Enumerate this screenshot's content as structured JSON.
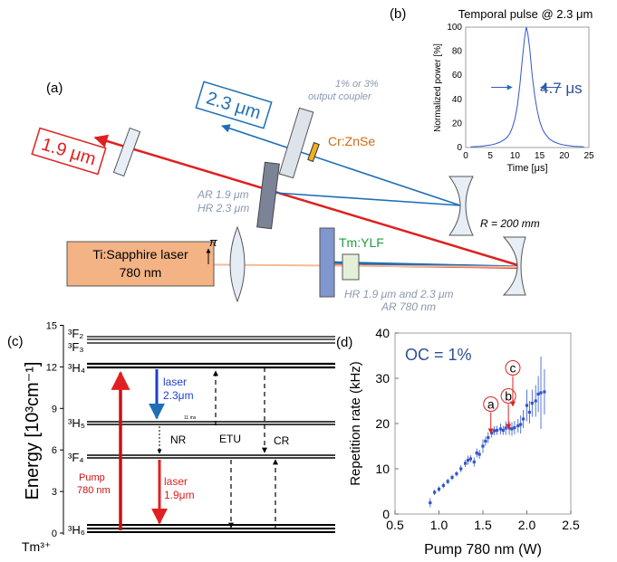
{
  "panels": {
    "a": "(a)",
    "b": "(b)",
    "c": "(c)",
    "d": "(d)"
  },
  "setup": {
    "laser_line1": "Ti:Sapphire laser",
    "laser_line2": "780 nm",
    "pi": "π",
    "out_19": "1.9 μm",
    "out_23": "2.3 μm",
    "coupler1": "1% or 3%",
    "coupler2": "output coupler",
    "crystal_cr": "Cr:ZnSe",
    "dichroic1": "AR 1.9 μm",
    "dichroic2": "HR 2.3 μm",
    "mirror_r": "R = 200 mm",
    "crystal_tm": "Tm:YLF",
    "hr1": "HR 1.9 μm and 2.3 μm",
    "hr2": "AR 780 nm"
  },
  "levels": {
    "ylabel": "Energy [10³cm⁻¹]",
    "ion": "Tm³⁺",
    "level_3F2": "³F₂",
    "level_3F3": "³F₃",
    "level_3H4": "³H₄",
    "level_3H5": "³H₅",
    "level_3F4": "³F₄",
    "level_3H6": "³H₆",
    "ticks": [
      "0",
      "3",
      "6",
      "9",
      "12",
      "15"
    ],
    "pump1": "Pump",
    "pump2": "780 nm",
    "laser23_1": "laser",
    "laser23_2": "2.3μm",
    "laser19_1": "laser",
    "laser19_2": "1.9μm",
    "nr": "NR",
    "etu": "ETU",
    "cr": "CR",
    "tiny": "11 ms"
  },
  "chart_data": [
    {
      "type": "line",
      "title": "Temporal pulse @ 2.3 μm",
      "xlabel": "Time [μs]",
      "ylabel": "Normalized power [%]",
      "xlim": [
        0,
        25
      ],
      "ylim": [
        0,
        100
      ],
      "xticks": [
        "0",
        "5",
        "10",
        "15",
        "20",
        "25"
      ],
      "yticks": [
        "0",
        "20",
        "40",
        "60",
        "80",
        "100"
      ],
      "peak_time": 12.3,
      "fwhm_label": "4.7 μs",
      "series": [
        {
          "x": [
            1,
            3,
            5,
            6,
            7,
            8,
            8.5,
            9,
            9.5,
            10,
            10.5,
            11,
            11.5,
            12,
            12.3,
            12.6,
            13,
            13.5,
            14,
            14.5,
            15,
            15.5,
            16,
            17,
            18,
            19,
            20,
            22,
            24
          ],
          "y": [
            0.5,
            1,
            2,
            3,
            4.5,
            7,
            9,
            12,
            17,
            24,
            35,
            52,
            74,
            93,
            100,
            95,
            82,
            60,
            43,
            31,
            22,
            16,
            12,
            7,
            4.5,
            3,
            2,
            1,
            0.5
          ]
        }
      ],
      "color": "#3355cc"
    },
    {
      "type": "scatter",
      "xlabel": "Pump 780 nm (W)",
      "ylabel": "Repetition rate (kHz)",
      "xlim": [
        0.5,
        2.5
      ],
      "ylim": [
        0,
        40
      ],
      "xticks": [
        "0.5",
        "1.0",
        "1.5",
        "2.0",
        "2.5"
      ],
      "yticks": [
        "0",
        "10",
        "20",
        "30",
        "40"
      ],
      "annotation": "OC = 1%",
      "markers": [
        {
          "label": "a",
          "x": 1.59,
          "y": 17.5
        },
        {
          "label": "b",
          "x": 1.79,
          "y": 18.5
        },
        {
          "label": "c",
          "x": 1.84,
          "y": 23.5
        }
      ],
      "series": [
        {
          "x": [
            0.9,
            0.95,
            1.0,
            1.05,
            1.1,
            1.15,
            1.2,
            1.25,
            1.3,
            1.33,
            1.36,
            1.4,
            1.43,
            1.46,
            1.5,
            1.53,
            1.56,
            1.6,
            1.63,
            1.66,
            1.7,
            1.73,
            1.76,
            1.8,
            1.83,
            1.86,
            1.9,
            1.93,
            1.96,
            2.0,
            2.03,
            2.06,
            2.1,
            2.13,
            2.16,
            2.2
          ],
          "y": [
            2.5,
            4.8,
            5.5,
            6.3,
            7.2,
            8.1,
            8.9,
            10.0,
            11.2,
            11.9,
            12.2,
            11.5,
            13.5,
            13.2,
            15.0,
            16.1,
            16.9,
            17.9,
            18.4,
            18.5,
            18.8,
            18.5,
            19.0,
            19.0,
            18.8,
            19.1,
            19.5,
            19.8,
            21.0,
            24.0,
            22.5,
            24.5,
            25.0,
            26.5,
            26.8,
            27.0
          ],
          "err": [
            1,
            0.6,
            0.6,
            0.6,
            0.6,
            0.6,
            0.6,
            0.8,
            0.8,
            1.0,
            0.8,
            1.0,
            1.0,
            1.0,
            1.5,
            1.0,
            1.2,
            1.0,
            1.0,
            1.0,
            1.2,
            1.0,
            1.5,
            1.5,
            1.5,
            1.5,
            1.5,
            2.0,
            2.0,
            3.5,
            2.5,
            3.0,
            3.5,
            4.0,
            8.0,
            5.0
          ]
        }
      ],
      "color": "#3355cc",
      "marker_color": "#dd2222"
    }
  ]
}
